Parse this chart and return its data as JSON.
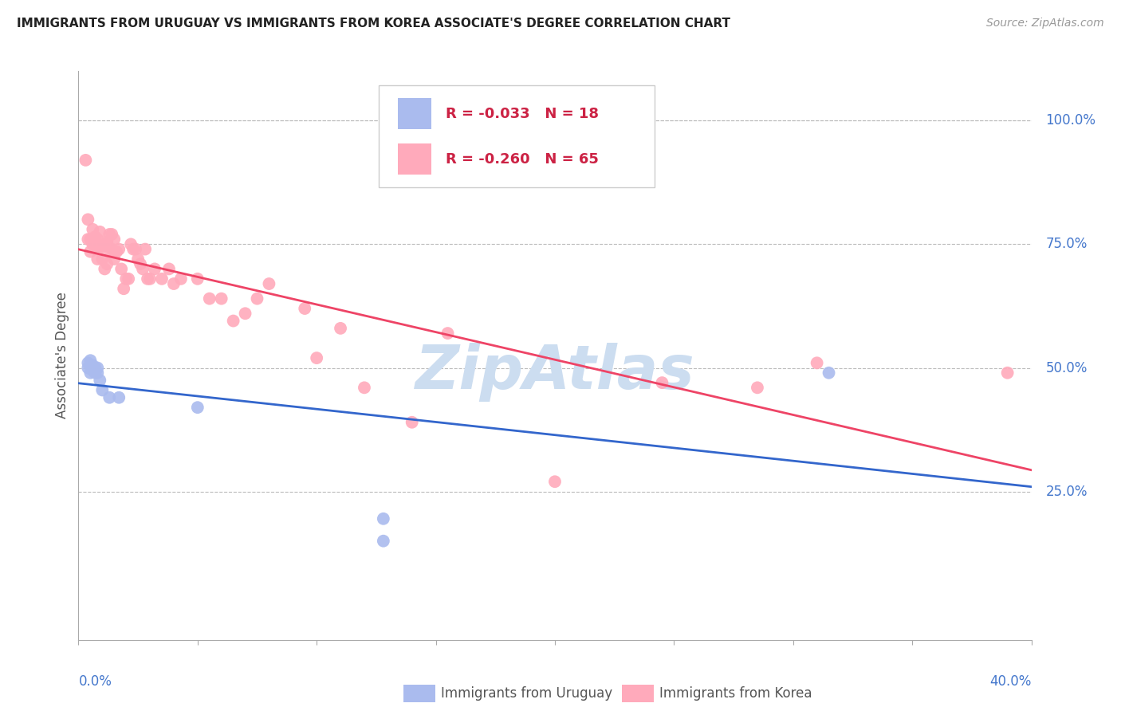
{
  "title": "IMMIGRANTS FROM URUGUAY VS IMMIGRANTS FROM KOREA ASSOCIATE'S DEGREE CORRELATION CHART",
  "source": "Source: ZipAtlas.com",
  "ylabel": "Associate's Degree",
  "right_yticks": [
    "100.0%",
    "75.0%",
    "50.0%",
    "25.0%"
  ],
  "right_ytick_vals": [
    1.0,
    0.75,
    0.5,
    0.25
  ],
  "xlim": [
    0.0,
    0.4
  ],
  "ylim": [
    -0.05,
    1.1
  ],
  "legend_r_uruguay": "-0.033",
  "legend_n_uruguay": "18",
  "legend_r_korea": "-0.260",
  "legend_n_korea": "65",
  "background_color": "#ffffff",
  "grid_color": "#bbbbbb",
  "title_color": "#222222",
  "right_axis_color": "#4477cc",
  "uruguay_color": "#aabbee",
  "korea_color": "#ffaabb",
  "trendline_uruguay_color": "#3366cc",
  "trendline_korea_color": "#ee4466",
  "watermark_text": "ZipAtlas",
  "watermark_color": "#ccddf0",
  "uruguay_x": [
    0.004,
    0.004,
    0.005,
    0.005,
    0.006,
    0.006,
    0.007,
    0.007,
    0.008,
    0.008,
    0.009,
    0.01,
    0.013,
    0.017,
    0.05,
    0.128,
    0.128,
    0.315
  ],
  "uruguay_y": [
    0.5,
    0.51,
    0.49,
    0.515,
    0.495,
    0.505,
    0.5,
    0.49,
    0.5,
    0.49,
    0.475,
    0.455,
    0.44,
    0.44,
    0.42,
    0.195,
    0.15,
    0.49
  ],
  "korea_x": [
    0.003,
    0.004,
    0.004,
    0.005,
    0.005,
    0.006,
    0.006,
    0.007,
    0.007,
    0.007,
    0.008,
    0.008,
    0.008,
    0.009,
    0.009,
    0.01,
    0.01,
    0.011,
    0.011,
    0.012,
    0.012,
    0.013,
    0.013,
    0.014,
    0.014,
    0.015,
    0.015,
    0.016,
    0.017,
    0.018,
    0.019,
    0.02,
    0.021,
    0.022,
    0.023,
    0.024,
    0.025,
    0.026,
    0.027,
    0.028,
    0.029,
    0.03,
    0.032,
    0.035,
    0.038,
    0.04,
    0.043,
    0.05,
    0.055,
    0.06,
    0.065,
    0.07,
    0.075,
    0.08,
    0.095,
    0.1,
    0.11,
    0.12,
    0.14,
    0.155,
    0.2,
    0.245,
    0.285,
    0.31,
    0.39
  ],
  "korea_y": [
    0.92,
    0.8,
    0.76,
    0.76,
    0.735,
    0.75,
    0.78,
    0.765,
    0.745,
    0.76,
    0.76,
    0.72,
    0.75,
    0.745,
    0.775,
    0.745,
    0.72,
    0.7,
    0.75,
    0.71,
    0.755,
    0.74,
    0.77,
    0.74,
    0.77,
    0.72,
    0.76,
    0.735,
    0.74,
    0.7,
    0.66,
    0.68,
    0.68,
    0.75,
    0.74,
    0.74,
    0.72,
    0.71,
    0.7,
    0.74,
    0.68,
    0.68,
    0.7,
    0.68,
    0.7,
    0.67,
    0.68,
    0.68,
    0.64,
    0.64,
    0.595,
    0.61,
    0.64,
    0.67,
    0.62,
    0.52,
    0.58,
    0.46,
    0.39,
    0.57,
    0.27,
    0.47,
    0.46,
    0.51,
    0.49
  ]
}
